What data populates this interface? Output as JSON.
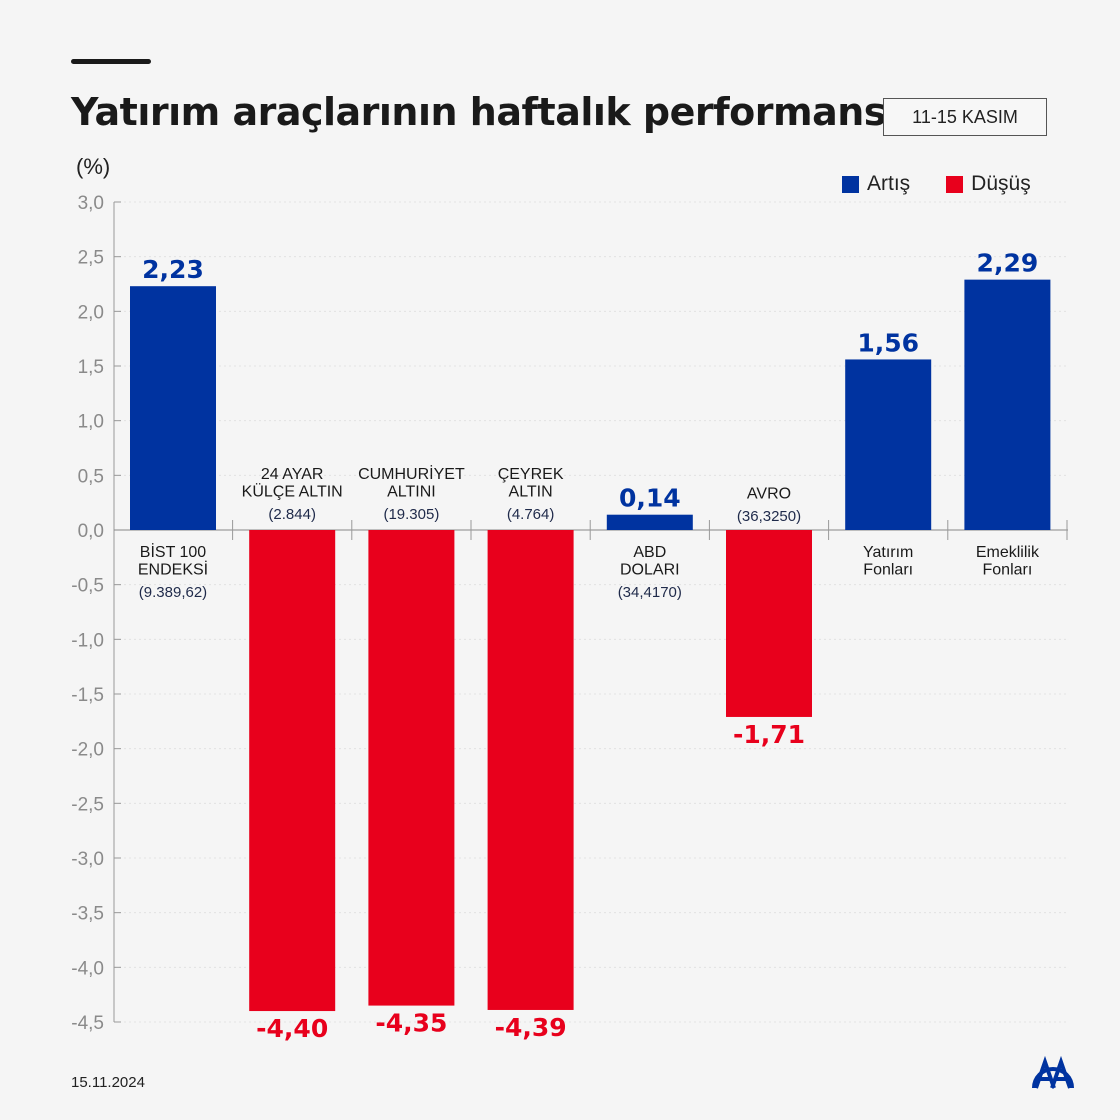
{
  "header": {
    "title": "Yatırım araçlarının haftalık performansı",
    "date_range": "11-15 KASIM"
  },
  "footer": {
    "date": "15.11.2024",
    "logo_text": "AA"
  },
  "colors": {
    "increase": "#0033A0",
    "decrease": "#E8001C",
    "category_text": "#1a1a1a",
    "sub_text": "#1f2a4a"
  },
  "chart_data": {
    "type": "bar",
    "title": "Yatırım araçlarının haftalık performansı",
    "ylabel": "(%)",
    "ylim": [
      -4.5,
      3.0
    ],
    "yticks": [
      "3,0",
      "2,5",
      "2,0",
      "1,5",
      "1,0",
      "0,5",
      "0,0",
      "-0,5",
      "-1,0",
      "-1,5",
      "-2,0",
      "-2,5",
      "-3,0",
      "-3,5",
      "-4,0",
      "-4,5"
    ],
    "grid": true,
    "legend": {
      "placement": "top-right",
      "entries": [
        {
          "label": "Artış",
          "color": "#0033A0"
        },
        {
          "label": "Düşüş",
          "color": "#E8001C"
        }
      ]
    },
    "categories": [
      {
        "lines": [
          "BİST 100",
          "ENDEKSİ"
        ],
        "sub": "(9.389,62)"
      },
      {
        "lines": [
          "24 AYAR",
          "KÜLÇE ALTIN"
        ],
        "sub": "(2.844)"
      },
      {
        "lines": [
          "CUMHURİYET",
          "ALTINI"
        ],
        "sub": "(19.305)"
      },
      {
        "lines": [
          "ÇEYREK",
          "ALTIN"
        ],
        "sub": "(4.764)"
      },
      {
        "lines": [
          "ABD",
          "DOLARI"
        ],
        "sub": "(34,4170)"
      },
      {
        "lines": [
          "AVRO"
        ],
        "sub": "(36,3250)"
      },
      {
        "lines": [
          "Yatırım",
          "Fonları"
        ],
        "sub": ""
      },
      {
        "lines": [
          "Emeklilik",
          "Fonları"
        ],
        "sub": ""
      }
    ],
    "values": [
      2.23,
      -4.4,
      -4.35,
      -4.39,
      0.14,
      -1.71,
      1.56,
      2.29
    ],
    "value_labels": [
      "2,23",
      "-4,40",
      "-4,35",
      "-4,39",
      "0,14",
      "-1,71",
      "1,56",
      "2,29"
    ]
  }
}
